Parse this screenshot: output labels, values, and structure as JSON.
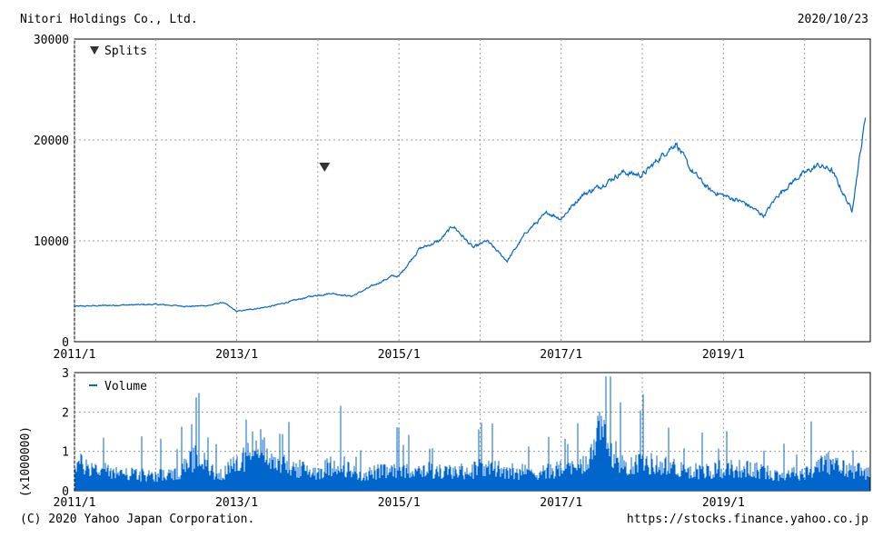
{
  "header": {
    "company": "Nitori Holdings Co., Ltd.",
    "date": "2020/10/23"
  },
  "footer": {
    "copyright": "(C) 2020 Yahoo Japan Corporation.",
    "url": "https://stocks.finance.yahoo.co.jp"
  },
  "colors": {
    "series": "#0066cc",
    "grid": "#999999",
    "marker": "#333333"
  },
  "chart_data": [
    {
      "type": "line",
      "title": "",
      "xlabel": "",
      "ylabel": "",
      "xlim": [
        "2011/1",
        "2020/10/23"
      ],
      "ylim": [
        0,
        30000
      ],
      "y_ticks": [
        0,
        10000,
        20000,
        30000
      ],
      "y_tick_labels": [
        "0",
        "10000",
        "20000",
        "30000"
      ],
      "x_tick_labels": [
        "2011/1",
        "2013/1",
        "2015/1",
        "2017/1",
        "2019/1"
      ],
      "grid": true,
      "legend": {
        "position": "top-left",
        "label": "Splits",
        "symbol": "down-triangle"
      },
      "splits": [
        {
          "date": "2014/2",
          "value": 17300
        }
      ],
      "series": [
        {
          "x": [
            "2011/01",
            "2011/06",
            "2012/01",
            "2012/06",
            "2012/09",
            "2012/11",
            "2013/01",
            "2013/06",
            "2013/12",
            "2014/03",
            "2014/06",
            "2014/09",
            "2014/12",
            "2015/01",
            "2015/04",
            "2015/07",
            "2015/09",
            "2015/12",
            "2016/02",
            "2016/05",
            "2016/08",
            "2016/11",
            "2017/01",
            "2017/04",
            "2017/07",
            "2017/10",
            "2018/01",
            "2018/04",
            "2018/06",
            "2018/08",
            "2018/11",
            "2019/01",
            "2019/04",
            "2019/07",
            "2019/09",
            "2019/12",
            "2020/03",
            "2020/05",
            "2020/08",
            "2020/10"
          ],
          "y": [
            3500,
            3600,
            3700,
            3500,
            3600,
            3900,
            3000,
            3500,
            4500,
            4800,
            4500,
            5500,
            6500,
            6500,
            9200,
            10000,
            11500,
            9300,
            10000,
            8000,
            11000,
            12800,
            12200,
            14500,
            15500,
            16800,
            16500,
            18500,
            19700,
            17200,
            15000,
            14500,
            13800,
            12500,
            14500,
            16300,
            17500,
            17000,
            13000,
            22200
          ]
        }
      ]
    },
    {
      "type": "bar",
      "title": "",
      "xlabel": "",
      "ylabel": "(x1000000)",
      "xlim": [
        "2011/1",
        "2020/10/23"
      ],
      "ylim": [
        0,
        3
      ],
      "y_tick_labels": [
        "0",
        "1",
        "2",
        "3"
      ],
      "x_tick_labels": [
        "2011/1",
        "2013/1",
        "2015/1",
        "2017/1",
        "2019/1"
      ],
      "grid": true,
      "legend": {
        "position": "top-left",
        "label": "Volume"
      },
      "series": [
        {
          "x": [
            "2011/01",
            "2011/04",
            "2011/07",
            "2011/10",
            "2012/01",
            "2012/04",
            "2012/07",
            "2012/10",
            "2013/01",
            "2013/04",
            "2013/07",
            "2013/10",
            "2014/01",
            "2014/04",
            "2014/07",
            "2014/10",
            "2015/01",
            "2015/04",
            "2015/07",
            "2015/10",
            "2016/01",
            "2016/04",
            "2016/07",
            "2016/10",
            "2017/01",
            "2017/04",
            "2017/07",
            "2017/10",
            "2018/01",
            "2018/04",
            "2018/07",
            "2018/10",
            "2019/01",
            "2019/04",
            "2019/07",
            "2019/10",
            "2020/01",
            "2020/04",
            "2020/07",
            "2020/10"
          ],
          "values": [
            0.9,
            0.7,
            0.6,
            0.5,
            0.5,
            0.5,
            1.1,
            0.5,
            0.8,
            1.5,
            0.9,
            0.7,
            0.6,
            0.9,
            0.5,
            0.6,
            0.6,
            0.7,
            0.6,
            0.6,
            0.7,
            0.7,
            0.6,
            0.6,
            0.7,
            0.7,
            1.9,
            0.8,
            0.9,
            0.8,
            0.7,
            0.6,
            0.7,
            0.7,
            0.6,
            0.5,
            0.6,
            0.9,
            0.7,
            0.6
          ]
        }
      ]
    }
  ]
}
